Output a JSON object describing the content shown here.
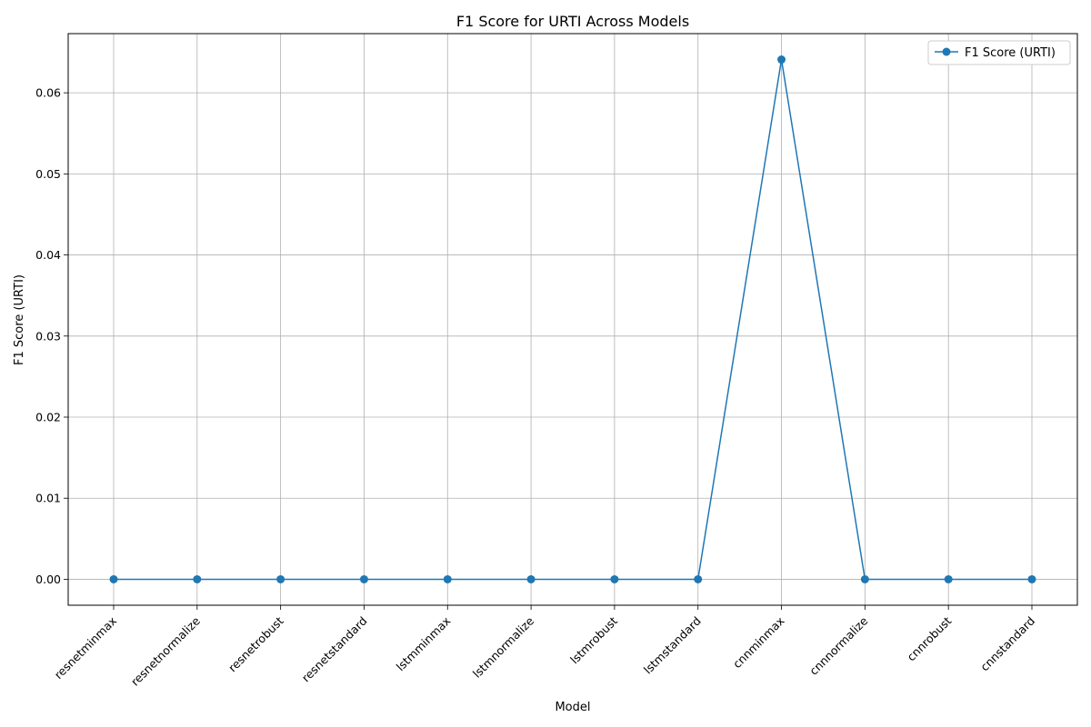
{
  "chart_data": {
    "type": "line",
    "title": "F1 Score for URTI Across Models",
    "xlabel": "Model",
    "ylabel": "F1 Score (URTI)",
    "categories": [
      "resnetminmax",
      "resnetnormalize",
      "resnetrobust",
      "resnetstandard",
      "lstmminmax",
      "lstmnormalize",
      "lstmrobust",
      "lstmstandard",
      "cnnminmax",
      "cnnnormalize",
      "cnnrobust",
      "cnnstandard"
    ],
    "series": [
      {
        "name": "F1 Score (URTI)",
        "values": [
          0,
          0,
          0,
          0,
          0,
          0,
          0,
          0,
          0.0641,
          0,
          0,
          0
        ],
        "color": "#1f77b4"
      }
    ],
    "ylim": [
      -0.0032,
      0.0673
    ],
    "yticks": [
      0.0,
      0.01,
      0.02,
      0.03,
      0.04,
      0.05,
      0.06
    ],
    "ytick_labels": [
      "0.00",
      "0.01",
      "0.02",
      "0.03",
      "0.04",
      "0.05",
      "0.06"
    ],
    "grid": true,
    "legend_position": "top-right"
  }
}
